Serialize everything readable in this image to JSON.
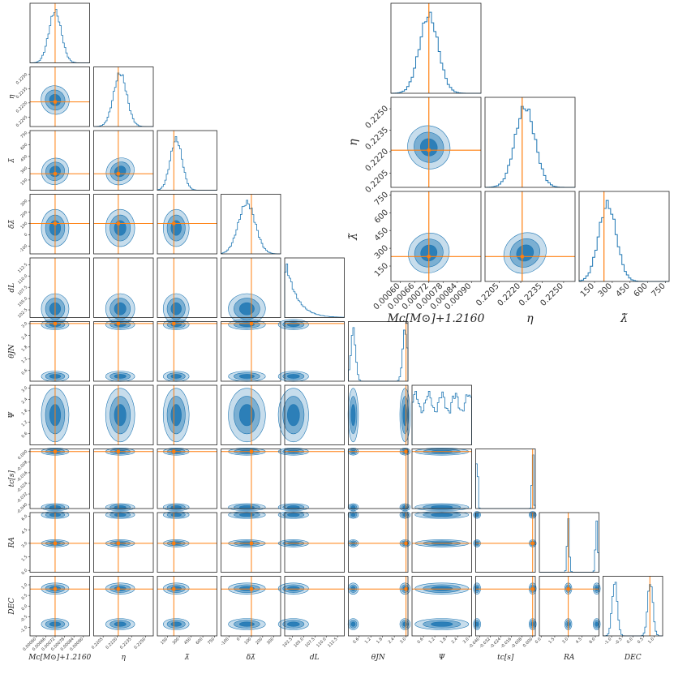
{
  "chart_data": [
    {
      "type": "corner",
      "panel": "main",
      "params": [
        {
          "name": "mc",
          "label": "Mc[M⊙]+1.2160",
          "ticks": [
            "0.00060",
            "0.00066",
            "0.00072",
            "0.00078",
            "0.00084",
            "0.00090"
          ],
          "range": [
            0.00056,
            0.00094
          ],
          "truth": 0.00072,
          "mode": 1,
          "mean": 0.00072,
          "sd": 4e-05
        },
        {
          "name": "eta",
          "label": "η",
          "ticks": [
            "0.2205",
            "0.2220",
            "0.2235",
            "0.2250"
          ],
          "range": [
            0.2195,
            0.2258
          ],
          "truth": 0.2221,
          "mode": 1,
          "mean": 0.2223,
          "sd": 0.0007
        },
        {
          "name": "lam",
          "label": "λ̃",
          "ticks": [
            "150",
            "300",
            "450",
            "600",
            "750"
          ],
          "range": [
            20,
            780
          ],
          "truth": 230,
          "mode": 1,
          "mean": 260,
          "sd": 75
        },
        {
          "name": "dlam",
          "label": "δλ̃",
          "ticks": [
            "-100",
            "0",
            "100",
            "200",
            "300"
          ],
          "range": [
            -170,
            360
          ],
          "truth": 100,
          "mode": 1,
          "mean": 60,
          "sd": 75
        },
        {
          "name": "dl",
          "label": "dL",
          "ticks": [
            "102.5",
            "105.0",
            "107.5",
            "110.0",
            "112.5"
          ],
          "range": [
            100.8,
            114
          ],
          "truth": null,
          "mode": 4,
          "mean": 101.3,
          "sd": 2.4
        },
        {
          "name": "theta",
          "label": "θJN",
          "ticks": [
            "0.6",
            "1.2",
            "1.8",
            "2.4",
            "3.0"
          ],
          "range": [
            0.05,
            3.1
          ],
          "truth": 3.0,
          "mode": 2,
          "means": [
            0.3,
            2.95
          ],
          "sd": 0.12
        },
        {
          "name": "psi",
          "label": "Ψ",
          "ticks": [
            "0.6",
            "1.2",
            "1.8",
            "2.4",
            "3.0"
          ],
          "range": [
            0.0,
            3.14
          ],
          "truth": null,
          "mode": 3,
          "mean": 1.57,
          "sd": 1
        },
        {
          "name": "tc",
          "label": "tc[s]",
          "ticks": [
            "-0.040",
            "-0.032",
            "-0.024",
            "-0.016",
            "-0.008",
            "0.000"
          ],
          "range": [
            -0.043,
            0.002
          ],
          "truth": 0.0,
          "mode": 2,
          "means": [
            -0.042,
            0.0
          ],
          "sd": 0.0006
        },
        {
          "name": "ra",
          "label": "RA",
          "ticks": [
            "0.0",
            "1.5",
            "3.0",
            "4.5",
            "6.0"
          ],
          "range": [
            -0.2,
            6.4
          ],
          "truth": 3.0,
          "mode": 2,
          "means": [
            3.0,
            6.15
          ],
          "sd": 0.12
        },
        {
          "name": "dec",
          "label": "DEC",
          "ticks": [
            "-1.0",
            "-0.5",
            "0.0",
            "0.5",
            "1.0"
          ],
          "range": [
            -1.4,
            1.4
          ],
          "truth": 0.8,
          "mode": 2,
          "means": [
            -0.85,
            0.82
          ],
          "sd": 0.12
        }
      ]
    },
    {
      "type": "corner",
      "panel": "inset",
      "params": [
        {
          "name": "mc",
          "label": "Mc[M⊙]+1.2160",
          "ticks": [
            "0.00060",
            "0.00066",
            "0.00072",
            "0.00078",
            "0.00084",
            "0.00090"
          ],
          "range": [
            0.00056,
            0.00094
          ],
          "truth": 0.00072,
          "mode": 1,
          "mean": 0.00072,
          "sd": 4e-05
        },
        {
          "name": "eta",
          "label": "η",
          "ticks": [
            "0.2205",
            "0.2220",
            "0.2235",
            "0.2250"
          ],
          "range": [
            0.2195,
            0.2258
          ],
          "truth": 0.2221,
          "mode": 1,
          "mean": 0.2223,
          "sd": 0.0007
        },
        {
          "name": "lam",
          "label": "λ̃",
          "ticks": [
            "150",
            "300",
            "450",
            "600",
            "750"
          ],
          "range": [
            20,
            780
          ],
          "truth": 230,
          "mode": 1,
          "mean": 260,
          "sd": 75
        }
      ]
    }
  ],
  "style": {
    "fill": "#1f77b4",
    "truth": "#ff7f0e",
    "frame": "#222222"
  }
}
